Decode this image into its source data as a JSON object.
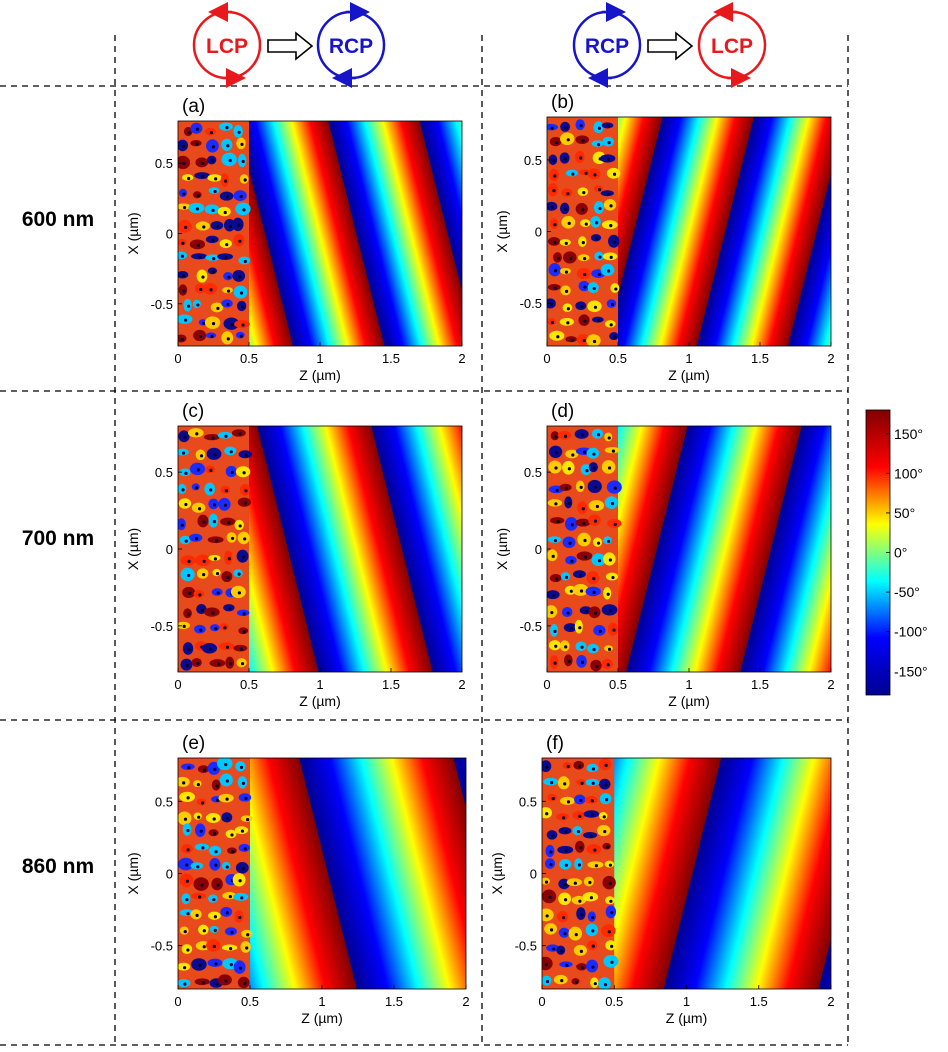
{
  "columns": [
    {
      "from": "LCP",
      "to": "RCP"
    },
    {
      "from": "RCP",
      "to": "LCP"
    }
  ],
  "rows": [
    {
      "label": "600 nm"
    },
    {
      "label": "700 nm"
    },
    {
      "label": "860 nm"
    }
  ],
  "colors": {
    "lcp": "#e8191c",
    "rcp": "#1616c8"
  },
  "chart_data": [
    {
      "type": "heatmap",
      "panel": "(a)",
      "wavelength": "600 nm",
      "conversion": "LCP to RCP",
      "xlabel": "Z (µm)",
      "ylabel": "X (µm)",
      "xlim": [
        0,
        2
      ],
      "ylim": [
        -0.8,
        0.8
      ],
      "xticks": [
        "0",
        "0.5",
        "1",
        "1.5",
        "2"
      ],
      "yticks": [
        "0.5",
        "0",
        "-0.5"
      ],
      "grating_region_um": [
        0,
        0.5
      ],
      "wavefront_tilt": "positive",
      "bands_in_view": 5
    },
    {
      "type": "heatmap",
      "panel": "(b)",
      "wavelength": "600 nm",
      "conversion": "RCP to LCP",
      "xlabel": "Z (µm)",
      "ylabel": "X (µm)",
      "xlim": [
        0,
        2
      ],
      "ylim": [
        -0.8,
        0.8
      ],
      "xticks": [
        "0",
        "0.5",
        "1",
        "1.5",
        "2"
      ],
      "yticks": [
        "0.5",
        "0",
        "-0.5"
      ],
      "grating_region_um": [
        0,
        0.5
      ],
      "wavefront_tilt": "negative",
      "bands_in_view": 5
    },
    {
      "type": "heatmap",
      "panel": "(c)",
      "wavelength": "700 nm",
      "conversion": "LCP to RCP",
      "xlabel": "Z (µm)",
      "ylabel": "X (µm)",
      "xlim": [
        0,
        2
      ],
      "ylim": [
        -0.8,
        0.8
      ],
      "xticks": [
        "0",
        "0.5",
        "1",
        "1.5",
        "2"
      ],
      "yticks": [
        "0.5",
        "0",
        "-0.5"
      ],
      "grating_region_um": [
        0,
        0.5
      ],
      "wavefront_tilt": "positive",
      "bands_in_view": 4
    },
    {
      "type": "heatmap",
      "panel": "(d)",
      "wavelength": "700 nm",
      "conversion": "RCP to LCP",
      "xlabel": "Z (µm)",
      "ylabel": "X (µm)",
      "xlim": [
        0,
        2
      ],
      "ylim": [
        -0.8,
        0.8
      ],
      "xticks": [
        "0",
        "0.5",
        "1",
        "1.5",
        "2"
      ],
      "yticks": [
        "0.5",
        "0",
        "-0.5"
      ],
      "grating_region_um": [
        0,
        0.5
      ],
      "wavefront_tilt": "negative",
      "bands_in_view": 4
    },
    {
      "type": "heatmap",
      "panel": "(e)",
      "wavelength": "860 nm",
      "conversion": "LCP to RCP",
      "xlabel": "Z (µm)",
      "ylabel": "X (µm)",
      "xlim": [
        0,
        2
      ],
      "ylim": [
        -0.8,
        0.8
      ],
      "xticks": [
        "0",
        "0.5",
        "1",
        "1.5",
        "2"
      ],
      "yticks": [
        "0.5",
        "0",
        "-0.5"
      ],
      "grating_region_um": [
        0,
        0.5
      ],
      "wavefront_tilt": "positive",
      "bands_in_view": 3
    },
    {
      "type": "heatmap",
      "panel": "(f)",
      "wavelength": "860 nm",
      "conversion": "RCP to LCP",
      "xlabel": "Z (µm)",
      "ylabel": "X (µm)",
      "xlim": [
        0,
        2
      ],
      "ylim": [
        -0.8,
        0.8
      ],
      "xticks": [
        "0",
        "0.5",
        "1",
        "1.5",
        "2"
      ],
      "yticks": [
        "0.5",
        "0",
        "-0.5"
      ],
      "grating_region_um": [
        0,
        0.5
      ],
      "wavefront_tilt": "negative",
      "bands_in_view": 3
    }
  ],
  "colorbar": {
    "range_deg": [
      -180,
      180
    ],
    "ticks": [
      {
        "value": 150,
        "label": "150°"
      },
      {
        "value": 100,
        "label": "100°"
      },
      {
        "value": 50,
        "label": "50°"
      },
      {
        "value": 0,
        "label": "0°"
      },
      {
        "value": -50,
        "label": "-50°"
      },
      {
        "value": -100,
        "label": "-100°"
      },
      {
        "value": -150,
        "label": "-150°"
      }
    ],
    "colormap": [
      "#00008f",
      "#0000ff",
      "#00ffff",
      "#ffff00",
      "#ff0000",
      "#800000"
    ]
  }
}
